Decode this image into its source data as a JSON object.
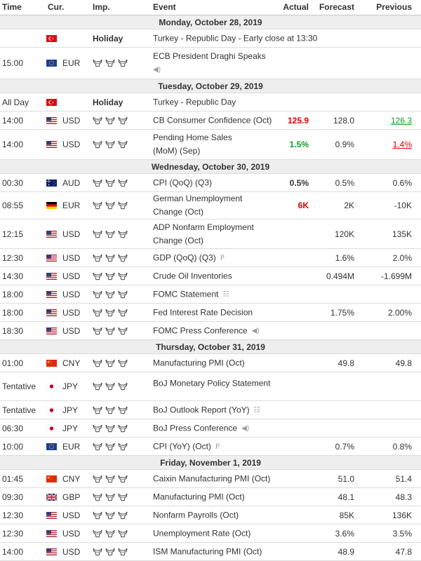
{
  "header": {
    "time": "Time",
    "cur": "Cur.",
    "imp": "Imp.",
    "event": "Event",
    "actual": "Actual",
    "forecast": "Forecast",
    "previous": "Previous"
  },
  "days": [
    {
      "label": "Monday, October 28, 2019",
      "events": [
        {
          "time": "",
          "flag": "TR",
          "cur": "",
          "holiday": "Holiday",
          "bulls": 0,
          "event": "Turkey - Republic Day - Early close at 13:30",
          "actual": "",
          "forecast": "",
          "previous": ""
        },
        {
          "time": "15:00",
          "flag": "EU",
          "cur": "EUR",
          "bulls": 3,
          "event": "ECB President Draghi Speaks",
          "icon": "speaker-icon",
          "actual": "",
          "forecast": "",
          "previous": ""
        }
      ]
    },
    {
      "label": "Tuesday, October 29, 2019",
      "events": [
        {
          "time": "All Day",
          "flag": "TR",
          "cur": "",
          "holiday": "Holiday",
          "bulls": 0,
          "event": "Turkey - Republic Day",
          "actual": "",
          "forecast": "",
          "previous": ""
        },
        {
          "time": "14:00",
          "flag": "US",
          "cur": "USD",
          "bulls": 3,
          "event": "CB Consumer Confidence (Oct)",
          "actual": "125.9",
          "actual_color": "red",
          "forecast": "128.0",
          "previous": "126.3",
          "previous_style": "green"
        },
        {
          "time": "14:00",
          "flag": "US",
          "cur": "USD",
          "bulls": 3,
          "event": "Pending Home Sales (MoM) (Sep)",
          "actual": "1.5%",
          "actual_color": "green",
          "forecast": "0.9%",
          "previous": "1.4%",
          "previous_style": "red"
        }
      ]
    },
    {
      "label": "Wednesday, October 30, 2019",
      "events": [
        {
          "time": "00:30",
          "flag": "AU",
          "cur": "AUD",
          "bulls": 3,
          "event": "CPI (QoQ) (Q3)",
          "actual": "0.5%",
          "actual_color": "black",
          "forecast": "0.5%",
          "previous": "0.6%"
        },
        {
          "time": "08:55",
          "flag": "DE",
          "cur": "EUR",
          "bulls": 3,
          "event": "German Unemployment Change (Oct)",
          "actual": "6K",
          "actual_color": "red",
          "forecast": "2K",
          "previous": "-10K"
        },
        {
          "time": "12:15",
          "flag": "US",
          "cur": "USD",
          "bulls": 3,
          "event": "ADP Nonfarm Employment Change (Oct)",
          "actual": "",
          "forecast": "120K",
          "previous": "135K"
        },
        {
          "time": "12:30",
          "flag": "US",
          "cur": "USD",
          "bulls": 3,
          "event": "GDP (QoQ) (Q3)",
          "icon": "preliminary-icon",
          "actual": "",
          "forecast": "1.6%",
          "previous": "2.0%"
        },
        {
          "time": "14:30",
          "flag": "US",
          "cur": "USD",
          "bulls": 3,
          "event": "Crude Oil Inventories",
          "actual": "",
          "forecast": "0.494M",
          "previous": "-1.699M"
        },
        {
          "time": "18:00",
          "flag": "US",
          "cur": "USD",
          "bulls": 3,
          "event": "FOMC Statement",
          "icon": "document-icon",
          "actual": "",
          "forecast": "",
          "previous": ""
        },
        {
          "time": "18:00",
          "flag": "US",
          "cur": "USD",
          "bulls": 3,
          "event": "Fed Interest Rate Decision",
          "actual": "",
          "forecast": "1.75%",
          "previous": "2.00%"
        },
        {
          "time": "18:30",
          "flag": "US",
          "cur": "USD",
          "bulls": 3,
          "event": "FOMC Press Conference",
          "icon": "speaker-icon",
          "actual": "",
          "forecast": "",
          "previous": ""
        }
      ]
    },
    {
      "label": "Thursday, October 31, 2019",
      "events": [
        {
          "time": "01:00",
          "flag": "CN",
          "cur": "CNY",
          "bulls": 3,
          "event": "Manufacturing PMI (Oct)",
          "actual": "",
          "forecast": "49.8",
          "previous": "49.8"
        },
        {
          "time": "Tentative",
          "flag": "JP",
          "cur": "JPY",
          "bulls": 3,
          "event": "BoJ Monetary Policy Statement",
          "actual": "",
          "forecast": "",
          "previous": ""
        },
        {
          "time": "Tentative",
          "flag": "JP",
          "cur": "JPY",
          "bulls": 3,
          "event": "BoJ Outlook Report (YoY)",
          "icon": "document-icon",
          "actual": "",
          "forecast": "",
          "previous": ""
        },
        {
          "time": "06:30",
          "flag": "JP",
          "cur": "JPY",
          "bulls": 3,
          "event": "BoJ Press Conference",
          "icon": "speaker-icon",
          "actual": "",
          "forecast": "",
          "previous": ""
        },
        {
          "time": "10:00",
          "flag": "EU",
          "cur": "EUR",
          "bulls": 3,
          "event": "CPI (YoY) (Oct)",
          "icon": "preliminary-icon",
          "actual": "",
          "forecast": "0.7%",
          "previous": "0.8%"
        }
      ]
    },
    {
      "label": "Friday, November 1, 2019",
      "events": [
        {
          "time": "01:45",
          "flag": "CN",
          "cur": "CNY",
          "bulls": 3,
          "event": "Caixin Manufacturing PMI (Oct)",
          "actual": "",
          "forecast": "51.0",
          "previous": "51.4"
        },
        {
          "time": "09:30",
          "flag": "GB",
          "cur": "GBP",
          "bulls": 3,
          "event": "Manufacturing PMI (Oct)",
          "actual": "",
          "forecast": "48.1",
          "previous": "48.3"
        },
        {
          "time": "12:30",
          "flag": "US",
          "cur": "USD",
          "bulls": 3,
          "event": "Nonfarm Payrolls (Oct)",
          "actual": "",
          "forecast": "85K",
          "previous": "136K"
        },
        {
          "time": "12:30",
          "flag": "US",
          "cur": "USD",
          "bulls": 3,
          "event": "Unemployment Rate (Oct)",
          "actual": "",
          "forecast": "3.6%",
          "previous": "3.5%"
        },
        {
          "time": "14:00",
          "flag": "US",
          "cur": "USD",
          "bulls": 3,
          "event": "ISM Manufacturing PMI (Oct)",
          "actual": "",
          "forecast": "48.9",
          "previous": "47.8"
        }
      ]
    }
  ],
  "icons": {
    "importance": "bull-icon",
    "speaker": "speaker-icon",
    "document": "document-icon",
    "preliminary": "preliminary-icon"
  }
}
